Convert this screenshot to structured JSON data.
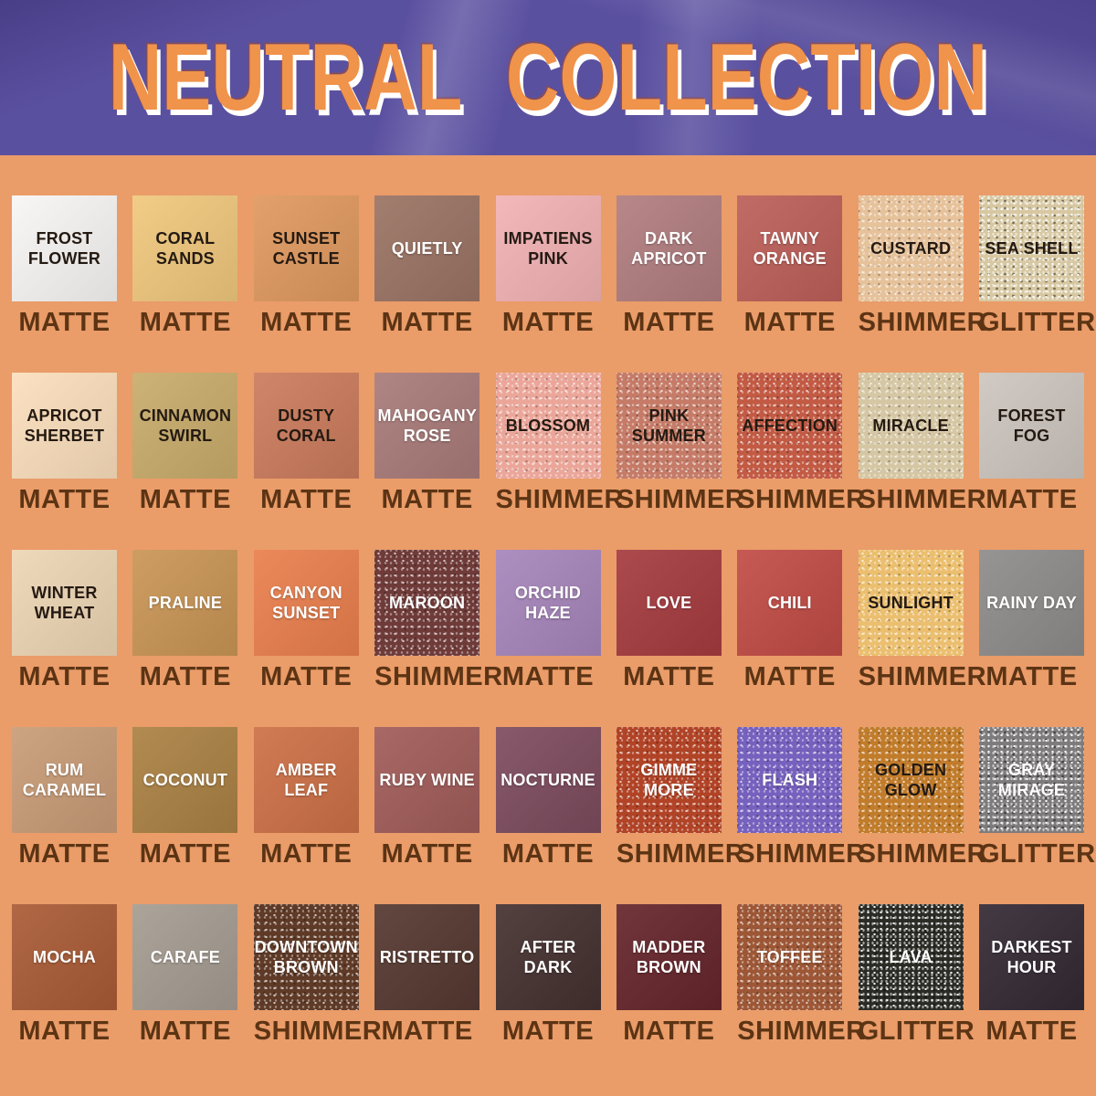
{
  "page": {
    "background": "#EA9C69"
  },
  "header": {
    "title": "NEUTRAL COLLECTION",
    "background": "#5A50A0",
    "title_color": "#F0934B",
    "title_outline_color": "#FFFFFF"
  },
  "finish_label_color": "#5C3414",
  "swatches": [
    {
      "name": "FROST FLOWER",
      "finish": "MATTE",
      "color": "#F8F6F4",
      "text": "dark"
    },
    {
      "name": "CORAL SANDS",
      "finish": "MATTE",
      "color": "#F0C87D",
      "text": "dark"
    },
    {
      "name": "SUNSET CASTLE",
      "finish": "MATTE",
      "color": "#E0995F",
      "text": "dark"
    },
    {
      "name": "QUIETLY",
      "finish": "MATTE",
      "color": "#9A7363",
      "text": "light"
    },
    {
      "name": "IMPATIENS PINK",
      "finish": "MATTE",
      "color": "#F2B2B4",
      "text": "dark"
    },
    {
      "name": "DARK APRICOT",
      "finish": "MATTE",
      "color": "#B17D7F",
      "text": "light"
    },
    {
      "name": "TAWNY ORANGE",
      "finish": "MATTE",
      "color": "#BD5F59",
      "text": "light"
    },
    {
      "name": "CUSTARD",
      "finish": "SHIMMER",
      "color": "#E6C29B",
      "text": "dark"
    },
    {
      "name": "SEA SHELL",
      "finish": "GLITTER",
      "color": "#D7C8A2",
      "text": "dark"
    },
    {
      "name": "APRICOT SHERBET",
      "finish": "MATTE",
      "color": "#FBDFBC",
      "text": "dark"
    },
    {
      "name": "CINNAMON SWIRL",
      "finish": "MATTE",
      "color": "#C9AC6B",
      "text": "dark"
    },
    {
      "name": "DUSTY CORAL",
      "finish": "MATTE",
      "color": "#CB7B5C",
      "text": "dark"
    },
    {
      "name": "MAHOGANY ROSE",
      "finish": "MATTE",
      "color": "#A97B79",
      "text": "light"
    },
    {
      "name": "BLOSSOM",
      "finish": "SHIMMER",
      "color": "#EBA69A",
      "text": "dark"
    },
    {
      "name": "PINK SUMMER",
      "finish": "SHIMMER",
      "color": "#C57B67",
      "text": "dark"
    },
    {
      "name": "AFFECTION",
      "finish": "SHIMMER",
      "color": "#C25A44",
      "text": "dark"
    },
    {
      "name": "MIRACLE",
      "finish": "SHIMMER",
      "color": "#D5C7A4",
      "text": "dark"
    },
    {
      "name": "FOREST FOG",
      "finish": "MATTE",
      "color": "#CDC6BF",
      "text": "dark"
    },
    {
      "name": "WINTER WHEAT",
      "finish": "MATTE",
      "color": "#EED6B5",
      "text": "dark"
    },
    {
      "name": "PRALINE",
      "finish": "MATTE",
      "color": "#C99555",
      "text": "light"
    },
    {
      "name": "CANYON SUNSET",
      "finish": "MATTE",
      "color": "#EA7F4D",
      "text": "light"
    },
    {
      "name": "MAROON",
      "finish": "SHIMMER",
      "color": "#6F3B39",
      "text": "light"
    },
    {
      "name": "ORCHID HAZE",
      "finish": "MATTE",
      "color": "#A685BB",
      "text": "light"
    },
    {
      "name": "LOVE",
      "finish": "MATTE",
      "color": "#A53B3F",
      "text": "light"
    },
    {
      "name": "CHILI",
      "finish": "MATTE",
      "color": "#C14B45",
      "text": "light"
    },
    {
      "name": "SUNLIGHT",
      "finish": "SHIMMER",
      "color": "#EBBF6F",
      "text": "dark"
    },
    {
      "name": "RAINY DAY",
      "finish": "MATTE",
      "color": "#8E8C8A",
      "text": "light"
    },
    {
      "name": "RUM CARAMEL",
      "finish": "MATTE",
      "color": "#C99C77",
      "text": "light"
    },
    {
      "name": "COCONUT",
      "finish": "MATTE",
      "color": "#AA8143",
      "text": "light"
    },
    {
      "name": "AMBER LEAF",
      "finish": "MATTE",
      "color": "#CD7046",
      "text": "light"
    },
    {
      "name": "RUBY WINE",
      "finish": "MATTE",
      "color": "#A15C59",
      "text": "light"
    },
    {
      "name": "NOCTURNE",
      "finish": "MATTE",
      "color": "#7D4B5D",
      "text": "light"
    },
    {
      "name": "GIMME MORE",
      "finish": "SHIMMER",
      "color": "#B14326",
      "text": "light"
    },
    {
      "name": "FLASH",
      "finish": "SHIMMER",
      "color": "#7661BE",
      "text": "light"
    },
    {
      "name": "GOLDEN GLOW",
      "finish": "SHIMMER",
      "color": "#C17C2B",
      "text": "dark"
    },
    {
      "name": "GRAY MIRAGE",
      "finish": "GLITTER",
      "color": "#7E7B7D",
      "text": "light"
    },
    {
      "name": "MOCHA",
      "finish": "MATTE",
      "color": "#A95B35",
      "text": "light"
    },
    {
      "name": "CARAFE",
      "finish": "MATTE",
      "color": "#A59C91",
      "text": "light"
    },
    {
      "name": "DOWNTOWN BROWN",
      "finish": "SHIMMER",
      "color": "#5F3A27",
      "text": "light"
    },
    {
      "name": "RISTRETTO",
      "finish": "MATTE",
      "color": "#553830",
      "text": "light"
    },
    {
      "name": "AFTER DARK",
      "finish": "MATTE",
      "color": "#453130",
      "text": "light"
    },
    {
      "name": "MADDER BROWN",
      "finish": "MATTE",
      "color": "#65252B",
      "text": "light"
    },
    {
      "name": "TOFFEE",
      "finish": "SHIMMER",
      "color": "#9D5736",
      "text": "light"
    },
    {
      "name": "LAVA",
      "finish": "GLITTER",
      "color": "#2C2C26",
      "text": "light"
    },
    {
      "name": "DARKEST HOUR",
      "finish": "MATTE",
      "color": "#342934",
      "text": "light"
    }
  ]
}
